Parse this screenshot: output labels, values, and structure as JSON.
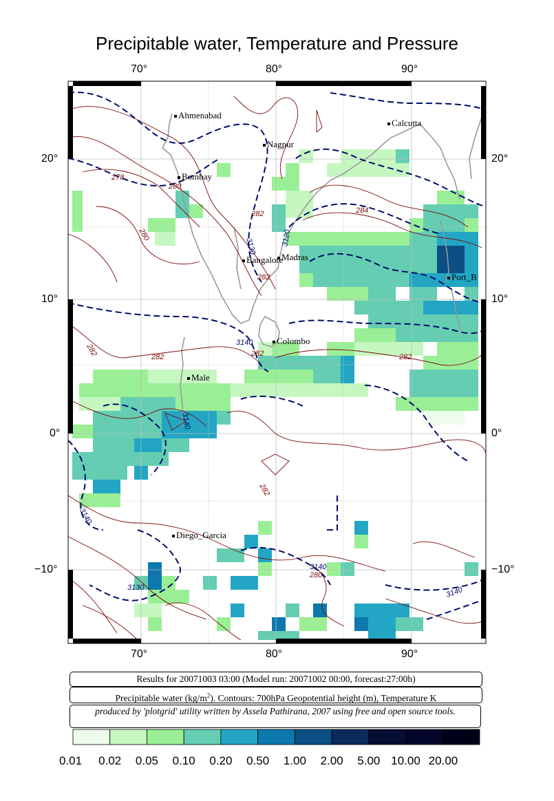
{
  "title": "Precipitable water, Temperature and Pressure",
  "lon_labels": [
    "70°",
    "80°",
    "90°"
  ],
  "lat_labels": [
    "20°",
    "10°",
    "0°",
    "−10°"
  ],
  "cities": [
    {
      "name": "Ahmenabad"
    },
    {
      "name": "Nagpur"
    },
    {
      "name": "Calcutta"
    },
    {
      "name": "Bombay"
    },
    {
      "name": "Madras"
    },
    {
      "name": "Bangalore"
    },
    {
      "name": "Port_B"
    },
    {
      "name": "Colombo"
    },
    {
      "name": "Male"
    },
    {
      "name": "Diego_Garcia"
    }
  ],
  "contour_labels": [
    "278",
    "280",
    "282",
    "284",
    "280",
    "3130",
    "3120",
    "282",
    "3140",
    "282",
    "282",
    "282",
    "282",
    "282",
    "3140",
    "3130",
    "3140",
    "3140",
    "280",
    "3140"
  ],
  "info": {
    "results": "Results for 20071003 03:00 (Model run: 20071002 00:00, forecast:27:00h)",
    "description_pre": "Precipitable water (kg/m",
    "description_sup": "2",
    "description_post": ").  Contours: 700hPa Geopotential height (m), Temperature K",
    "credit": "produced by 'plotgrid' utility written by Assela Pathirana, 2007 using free and open source tools."
  },
  "colorbar": {
    "labels": [
      "0.01",
      "0.02",
      "0.05",
      "0.10",
      "0.20",
      "0.50",
      "1.00",
      "2.00",
      "5.00",
      "10.00",
      "20.00"
    ],
    "colors": [
      "#eefced",
      "#c6f7c1",
      "#9aef96",
      "#64cdb2",
      "#22a6c4",
      "#0c78ad",
      "#0b4f84",
      "#0a2a5c",
      "#060e36",
      "#03052a",
      "#000018"
    ]
  }
}
